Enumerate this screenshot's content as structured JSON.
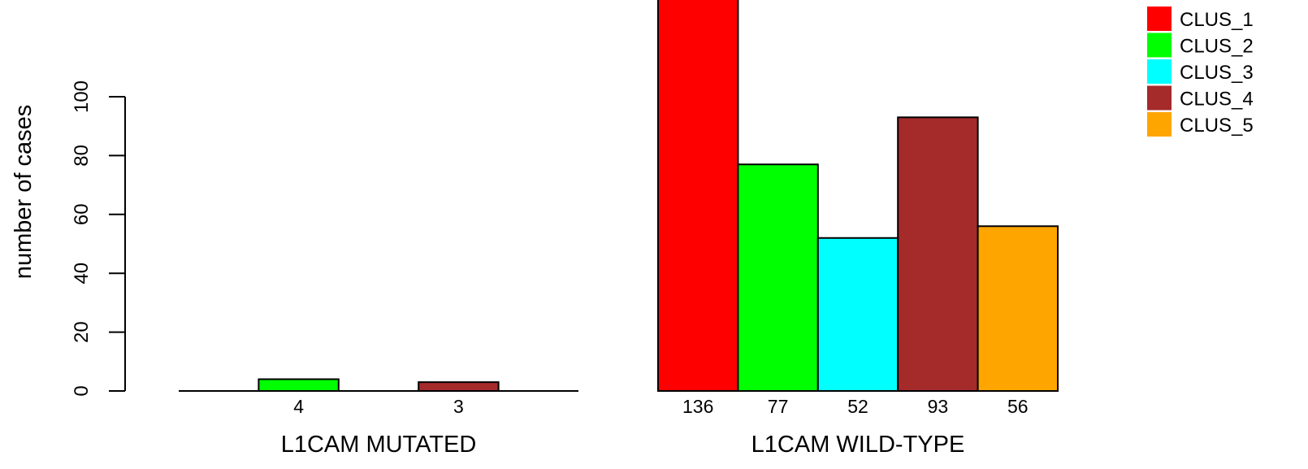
{
  "chart_data": {
    "type": "bar",
    "ylabel": "number of cases",
    "ylim": [
      0,
      120
    ],
    "yticks": [
      0,
      20,
      40,
      60,
      80,
      100
    ],
    "grid": false,
    "legend_position": "top-right",
    "series": [
      {
        "name": "CLUS_1",
        "color": "#ff0000"
      },
      {
        "name": "CLUS_2",
        "color": "#00ff00"
      },
      {
        "name": "CLUS_3",
        "color": "#00ffff"
      },
      {
        "name": "CLUS_4",
        "color": "#a52a2a"
      },
      {
        "name": "CLUS_5",
        "color": "#ffa500"
      }
    ],
    "groups": [
      {
        "label": "L1CAM MUTATED",
        "values": [
          0,
          4,
          0,
          3,
          0
        ],
        "value_labels": [
          "",
          "4",
          "",
          "3",
          ""
        ]
      },
      {
        "label": "L1CAM WILD-TYPE",
        "values": [
          136,
          77,
          52,
          93,
          56
        ],
        "value_labels": [
          "136",
          "77",
          "52",
          "93",
          "56"
        ]
      }
    ]
  }
}
